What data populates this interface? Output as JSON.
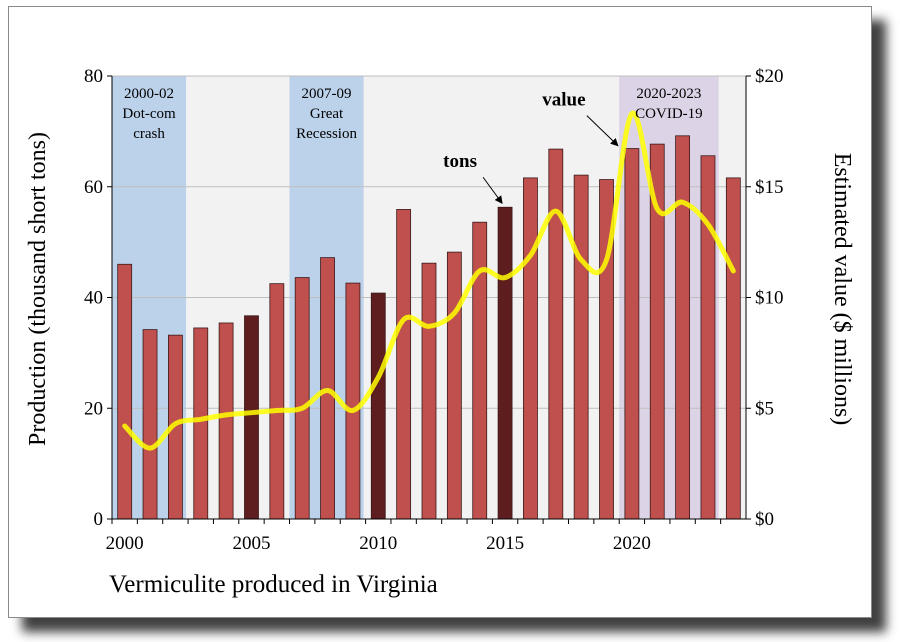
{
  "chart_data": {
    "type": "bar",
    "title": "",
    "caption": "Vermiculite produced in Virginia",
    "xlabel": "",
    "ylabel": "Production (thousand short tons)",
    "y2label": "Estimated value ($ millions)",
    "ylim": [
      0,
      80
    ],
    "y2lim": [
      0,
      20
    ],
    "yticks": [
      "0",
      "20",
      "40",
      "60",
      "80"
    ],
    "y2ticks": [
      "$0",
      "$5",
      "$10",
      "$15",
      "$20"
    ],
    "xticks": [
      "2000",
      "2005",
      "2010",
      "2015",
      "2020"
    ],
    "xtick_years": [
      2000,
      2005,
      2010,
      2015,
      2020
    ],
    "grid": true,
    "years": [
      2000,
      2001,
      2002,
      2003,
      2004,
      2005,
      2006,
      2007,
      2008,
      2009,
      2010,
      2011,
      2012,
      2013,
      2014,
      2015,
      2016,
      2017,
      2018,
      2019,
      2020,
      2021,
      2022,
      2023,
      2024
    ],
    "series": [
      {
        "name": "tons",
        "axis": "left",
        "values": [
          46,
          34.2,
          33.2,
          34.5,
          35.4,
          36.7,
          42.5,
          43.6,
          47.2,
          42.6,
          40.8,
          55.9,
          46.2,
          48.2,
          53.6,
          56.3,
          61.6,
          66.8,
          62.1,
          61.3,
          66.9,
          67.7,
          69.2,
          65.6,
          61.6
        ]
      },
      {
        "name": "value",
        "axis": "right",
        "values": [
          4.2,
          3.2,
          4.3,
          4.5,
          4.7,
          4.8,
          4.9,
          5.0,
          5.8,
          4.9,
          6.4,
          9.0,
          8.7,
          9.3,
          11.2,
          10.9,
          11.9,
          13.9,
          11.7,
          11.7,
          18.3,
          14.0,
          14.3,
          13.3,
          11.2
        ]
      }
    ],
    "highlighted_years": [
      2005,
      2010,
      2015
    ],
    "shaded_periods": [
      {
        "start": 2000,
        "end": 2002,
        "label_lines": [
          "2000-02",
          "Dot-com",
          "crash"
        ],
        "color": "#bcd2eb"
      },
      {
        "start": 2007,
        "end": 2009,
        "label_lines": [
          "2007-09",
          "Great",
          "Recession"
        ],
        "color": "#bcd2eb"
      },
      {
        "start": 2020,
        "end": 2023,
        "label_lines": [
          "2020-2023",
          "COVID-19"
        ],
        "color": "#dcd4e6"
      }
    ],
    "annotations": [
      {
        "text": "tons",
        "target_year": 2015,
        "target_series": "tons"
      },
      {
        "text": "value",
        "target_year": 2020,
        "target_series": "value"
      }
    ],
    "colors": {
      "bar": "#c0504d",
      "bar_highlight": "#5e1d1f",
      "line": "#ffff00",
      "plot_background": "#f2f2f2",
      "gridline": "#bfbfbf"
    }
  }
}
